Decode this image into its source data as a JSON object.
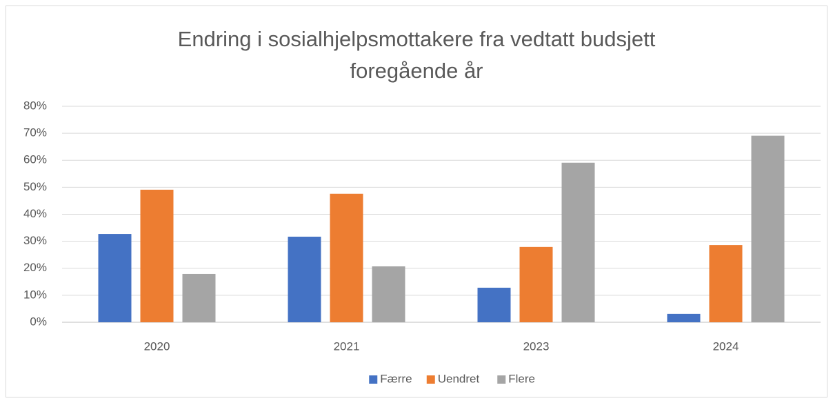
{
  "chart_data": {
    "type": "bar",
    "title": "Endring i sosialhjelpsmottakere fra vedtatt budsjett foregående år",
    "categories": [
      "2020",
      "2021",
      "2023",
      "2024"
    ],
    "series": [
      {
        "name": "Færre",
        "color": "#4472c4",
        "values": [
          32.7,
          31.7,
          12.8,
          3.1
        ]
      },
      {
        "name": "Uendret",
        "color": "#ed7d31",
        "values": [
          49.1,
          47.6,
          27.9,
          28.6
        ]
      },
      {
        "name": "Flere",
        "color": "#a5a5a5",
        "values": [
          17.9,
          20.7,
          59.1,
          69.1
        ]
      }
    ],
    "ylim": [
      0,
      80
    ],
    "yticks": [
      {
        "value": 0,
        "label": "0%"
      },
      {
        "value": 10,
        "label": "10%"
      },
      {
        "value": 20,
        "label": "20%"
      },
      {
        "value": 30,
        "label": "30%"
      },
      {
        "value": 40,
        "label": "40%"
      },
      {
        "value": 50,
        "label": "50%"
      },
      {
        "value": 60,
        "label": "60%"
      },
      {
        "value": 70,
        "label": "70%"
      },
      {
        "value": 80,
        "label": "80%"
      }
    ],
    "grid": true,
    "legend": "bottom"
  }
}
